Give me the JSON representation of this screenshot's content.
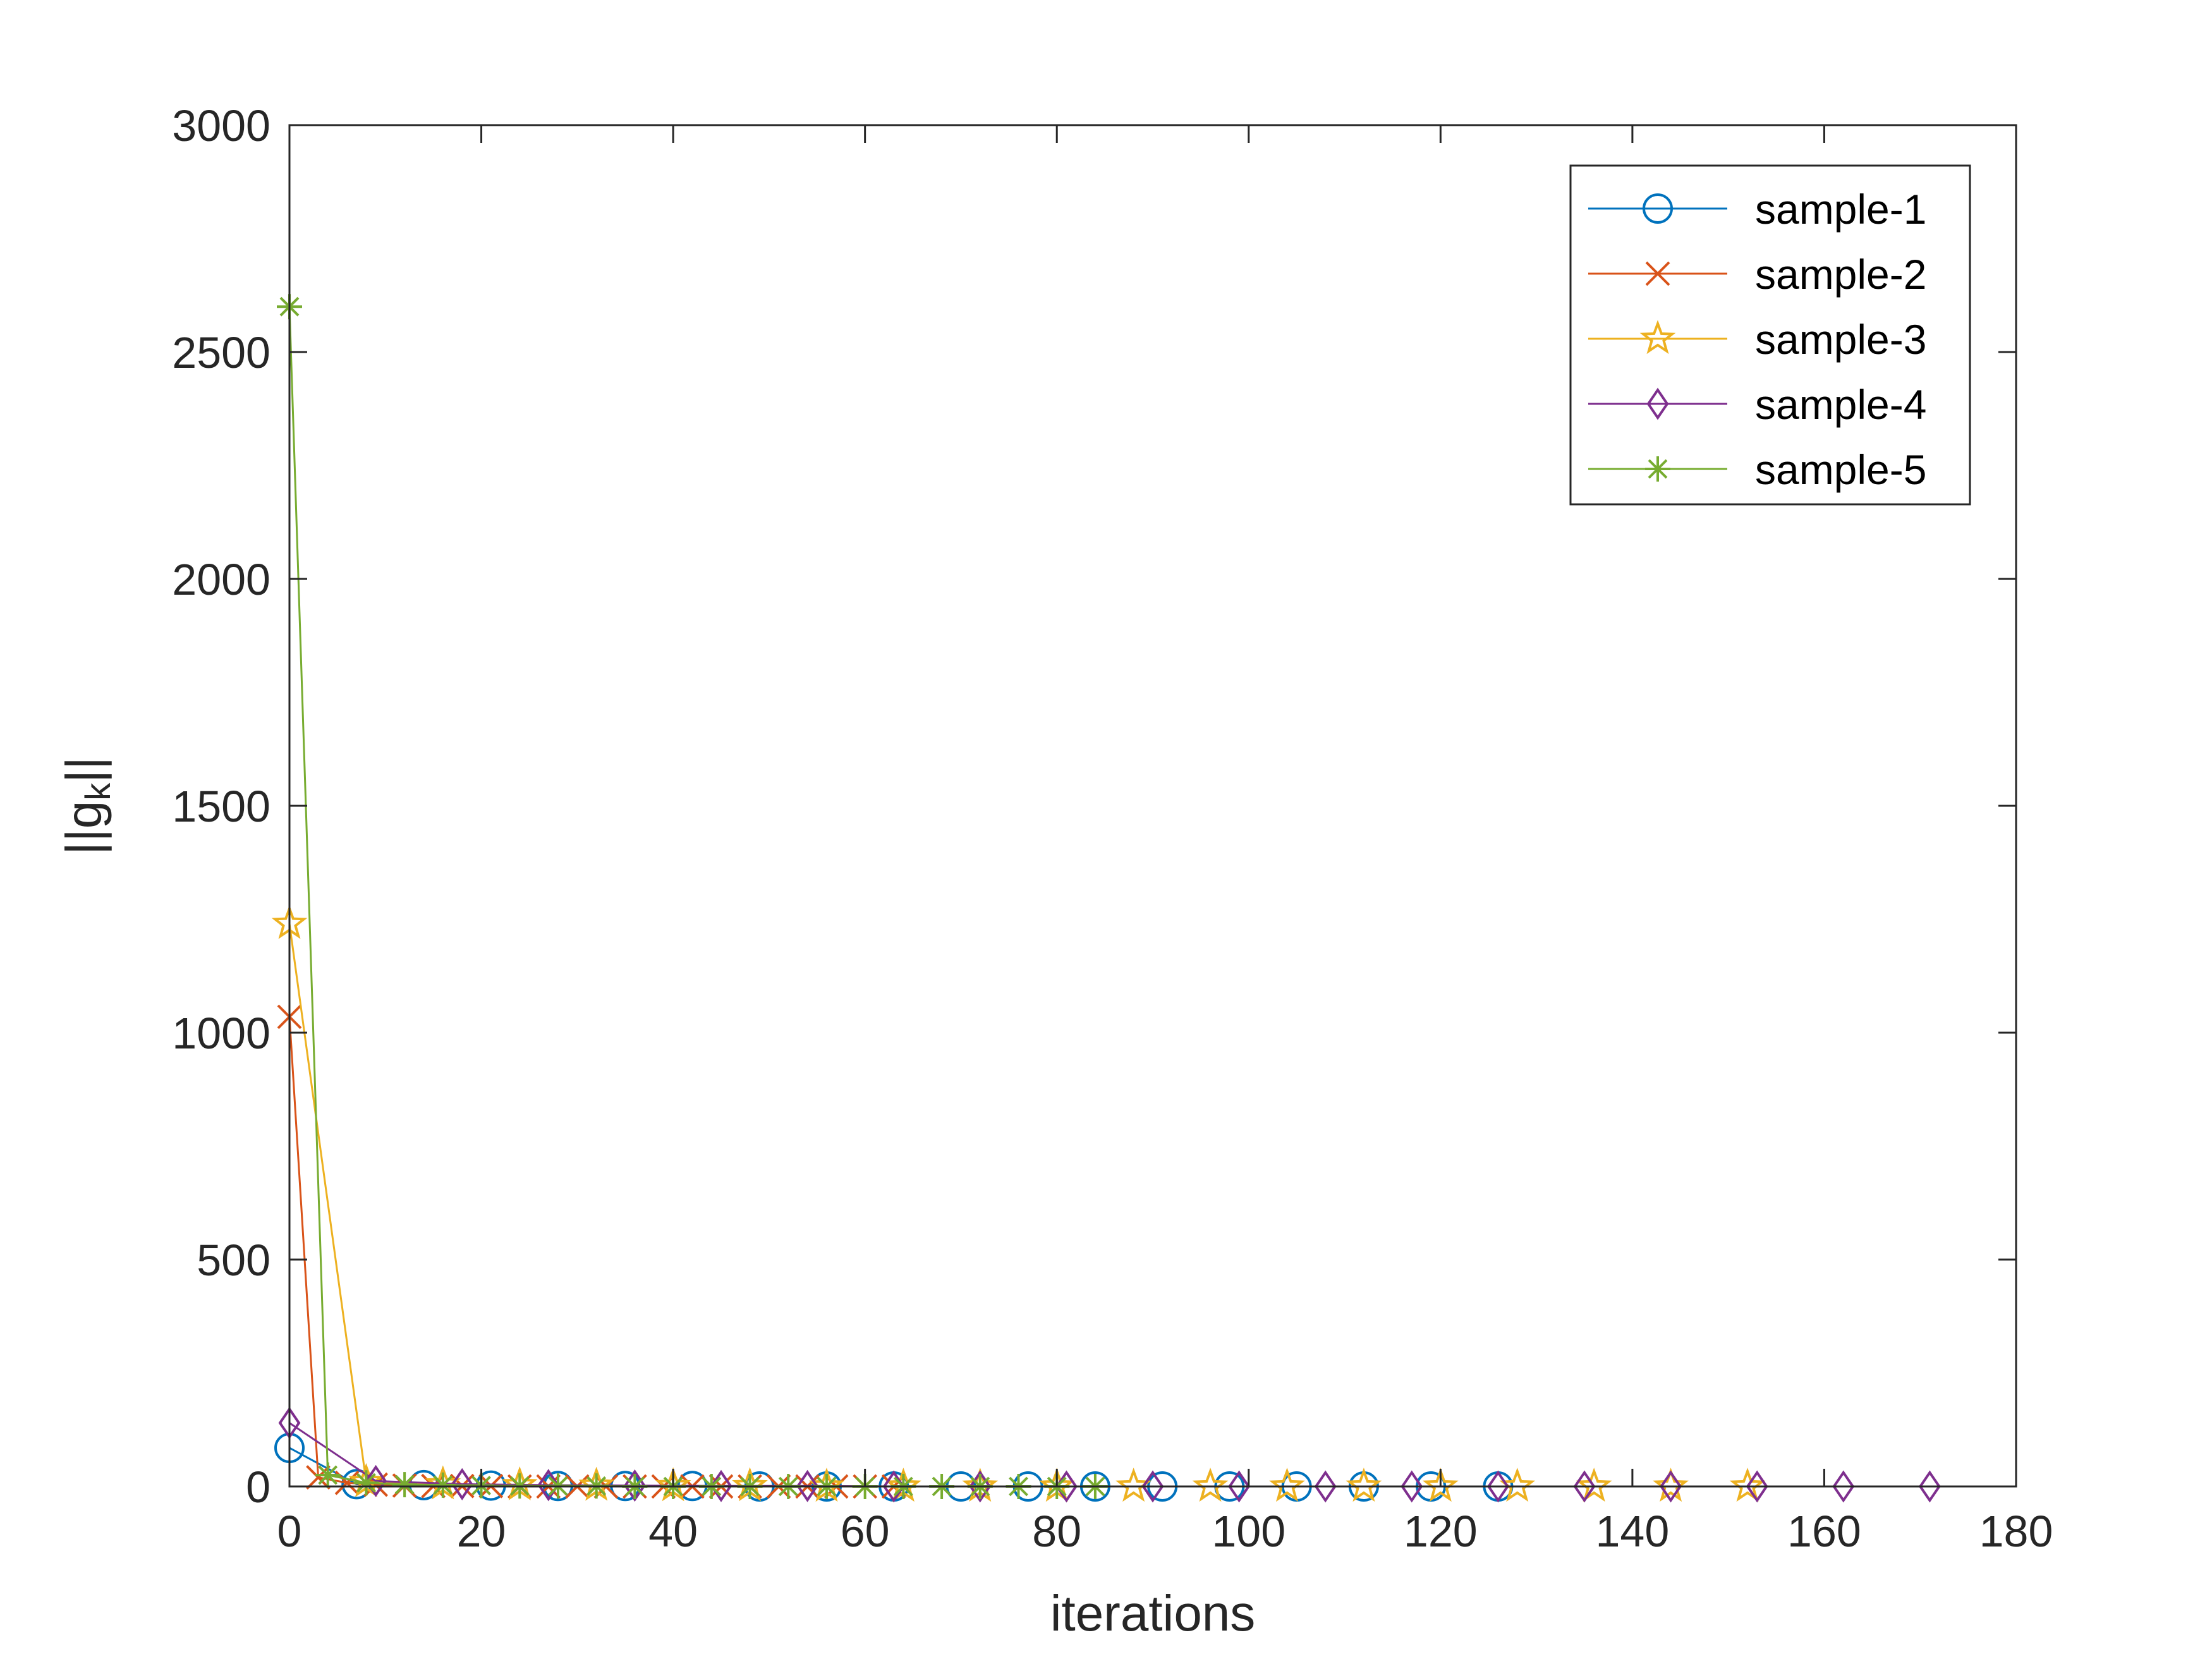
{
  "chart_data": {
    "type": "line",
    "xlabel": "iterations",
    "ylabel": "||g",
    "ylabel_subscript": "k",
    "ylabel_suffix": "||",
    "xlim": [
      0,
      180
    ],
    "ylim": [
      0,
      3000
    ],
    "xticks": [
      0,
      20,
      40,
      60,
      80,
      100,
      120,
      140,
      160,
      180
    ],
    "yticks": [
      0,
      500,
      1000,
      1500,
      2000,
      2500,
      3000
    ],
    "grid": false,
    "legend_position": "top-right",
    "series": [
      {
        "name": "sample-1",
        "color": "#0072BD",
        "marker": "circle",
        "x": [
          0,
          7,
          14,
          21,
          28,
          35,
          42,
          49,
          56,
          63,
          70,
          77,
          84,
          91,
          98,
          105,
          112,
          119,
          126
        ],
        "y": [
          85,
          5,
          3,
          2,
          1,
          1,
          1,
          0,
          0,
          0,
          0,
          0,
          0,
          0,
          0,
          0,
          0,
          0,
          0
        ]
      },
      {
        "name": "sample-2",
        "color": "#D95319",
        "marker": "x",
        "x": [
          0,
          3,
          6,
          9,
          12,
          15,
          18,
          21,
          24,
          27,
          30,
          33,
          36,
          39,
          42,
          45,
          48,
          51,
          54,
          57,
          60,
          63
        ],
        "y": [
          1035,
          20,
          8,
          4,
          2,
          1,
          1,
          1,
          0,
          0,
          0,
          0,
          0,
          0,
          0,
          0,
          0,
          0,
          0,
          0,
          0,
          0
        ]
      },
      {
        "name": "sample-3",
        "color": "#EDB120",
        "marker": "star",
        "x": [
          0,
          8,
          16,
          24,
          32,
          40,
          48,
          56,
          64,
          72,
          80,
          88,
          96,
          104,
          112,
          120,
          128,
          136,
          144,
          152
        ],
        "y": [
          1240,
          10,
          5,
          3,
          2,
          1,
          1,
          0,
          0,
          0,
          0,
          0,
          0,
          0,
          0,
          0,
          0,
          0,
          0,
          0
        ]
      },
      {
        "name": "sample-4",
        "color": "#7E2F8E",
        "marker": "diamond",
        "x": [
          0,
          9,
          18,
          27,
          36,
          45,
          54,
          63,
          72,
          81,
          90,
          99,
          108,
          117,
          126,
          135,
          144,
          153,
          162,
          171
        ],
        "y": [
          140,
          12,
          5,
          3,
          2,
          1,
          1,
          0,
          0,
          0,
          0,
          0,
          0,
          0,
          0,
          0,
          0,
          0,
          0,
          0
        ]
      },
      {
        "name": "sample-5",
        "color": "#77AC30",
        "marker": "asterisk",
        "x": [
          0,
          4,
          8,
          12,
          16,
          20,
          24,
          28,
          32,
          36,
          40,
          44,
          48,
          52,
          56,
          60,
          64,
          68,
          72,
          76,
          80,
          84
        ],
        "y": [
          2600,
          25,
          8,
          4,
          3,
          2,
          1,
          1,
          1,
          0,
          0,
          0,
          0,
          0,
          0,
          0,
          0,
          0,
          0,
          0,
          0,
          0
        ]
      }
    ]
  }
}
